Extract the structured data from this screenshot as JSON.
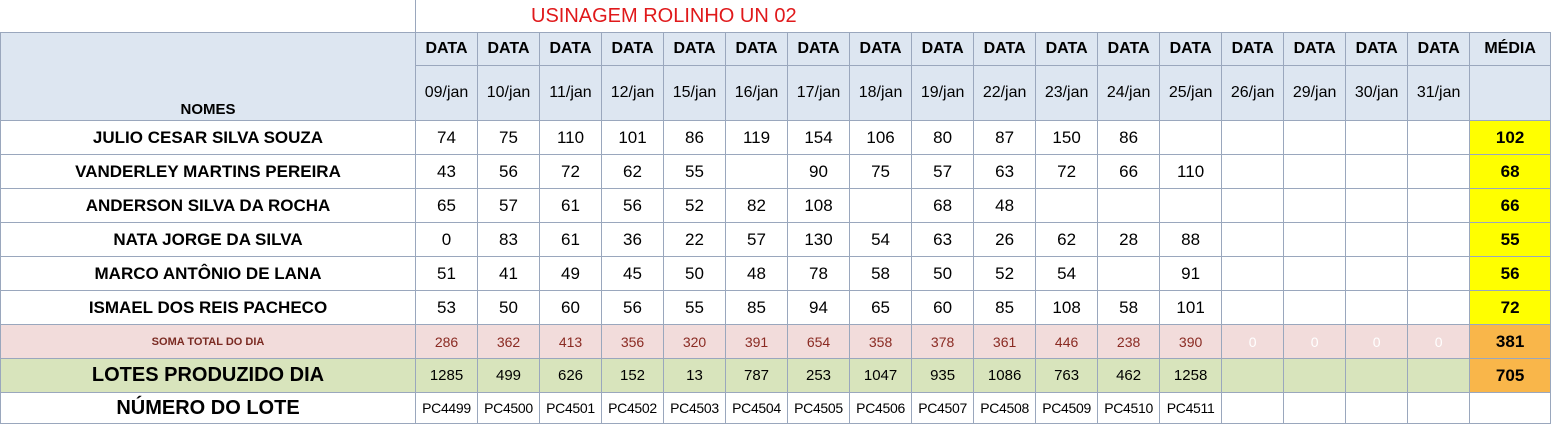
{
  "title": "USINAGEM ROLINHO UN 02",
  "header": {
    "nomes_label": "NOMES",
    "media_label": "MÉDIA",
    "data_labels": [
      "DATA",
      "DATA",
      "DATA",
      "DATA",
      "DATA",
      "DATA",
      "DATA",
      "DATA",
      "DATA",
      "DATA",
      "DATA",
      "DATA",
      "DATA",
      "DATA",
      "DATA",
      "DATA",
      "DATA"
    ],
    "dates": [
      "09/jan",
      "10/jan",
      "11/jan",
      "12/jan",
      "15/jan",
      "16/jan",
      "17/jan",
      "18/jan",
      "19/jan",
      "22/jan",
      "23/jan",
      "24/jan",
      "25/jan",
      "26/jan",
      "29/jan",
      "30/jan",
      "31/jan"
    ]
  },
  "rows": [
    {
      "name": "JULIO CESAR SILVA SOUZA",
      "values": [
        "74",
        "75",
        "110",
        "101",
        "86",
        "119",
        "154",
        "106",
        "80",
        "87",
        "150",
        "86",
        "",
        "",
        "",
        "",
        ""
      ],
      "media": "102"
    },
    {
      "name": "VANDERLEY MARTINS PEREIRA",
      "values": [
        "43",
        "56",
        "72",
        "62",
        "55",
        "",
        "90",
        "75",
        "57",
        "63",
        "72",
        "66",
        "110",
        "",
        "",
        "",
        ""
      ],
      "media": "68"
    },
    {
      "name": "ANDERSON SILVA DA ROCHA",
      "values": [
        "65",
        "57",
        "61",
        "56",
        "52",
        "82",
        "108",
        "",
        "68",
        "48",
        "",
        "",
        "",
        "",
        "",
        "",
        ""
      ],
      "media": "66"
    },
    {
      "name": "NATA JORGE DA SILVA",
      "values": [
        "0",
        "83",
        "61",
        "36",
        "22",
        "57",
        "130",
        "54",
        "63",
        "26",
        "62",
        "28",
        "88",
        "",
        "",
        "",
        ""
      ],
      "media": "55"
    },
    {
      "name": "MARCO ANTÔNIO DE LANA",
      "values": [
        "51",
        "41",
        "49",
        "45",
        "50",
        "48",
        "78",
        "58",
        "50",
        "52",
        "54",
        "",
        "91",
        "",
        "",
        "",
        ""
      ],
      "media": "56"
    },
    {
      "name": "ISMAEL DOS REIS PACHECO",
      "values": [
        "53",
        "50",
        "60",
        "56",
        "55",
        "85",
        "94",
        "65",
        "60",
        "85",
        "108",
        "58",
        "101",
        "",
        "",
        "",
        ""
      ],
      "media": "72"
    }
  ],
  "soma": {
    "label": "SOMA TOTAL DO DIA",
    "values": [
      "286",
      "362",
      "413",
      "356",
      "320",
      "391",
      "654",
      "358",
      "378",
      "361",
      "446",
      "238",
      "390",
      "0",
      "0",
      "0",
      "0"
    ],
    "media": "381"
  },
  "lotes": {
    "label": "LOTES PRODUZIDO DIA",
    "values": [
      "1285",
      "499",
      "626",
      "152",
      "13",
      "787",
      "253",
      "1047",
      "935",
      "1086",
      "763",
      "462",
      "1258",
      "",
      "",
      "",
      ""
    ],
    "media": "705"
  },
  "numero_lote": {
    "label": "NÚMERO DO LOTE",
    "values": [
      "PC4499",
      "PC4500",
      "PC4501",
      "PC4502",
      "PC4503",
      "PC4504",
      "PC4505",
      "PC4506",
      "PC4507",
      "PC4508",
      "PC4509",
      "PC4510",
      "PC4511",
      "",
      "",
      "",
      ""
    ]
  },
  "colors": {
    "title": "#e0191b",
    "header_bg": "#dde6f1",
    "media_yellow": "#ffff00",
    "soma_bg": "#f2dcdb",
    "media_orange": "#f9b64a",
    "lotes_bg": "#d8e4bc"
  }
}
